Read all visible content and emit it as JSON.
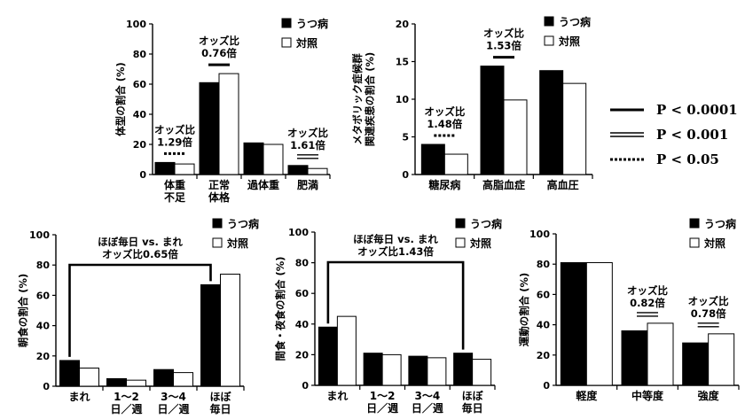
{
  "chart_data": [
    {
      "id": "c1",
      "type": "bar",
      "ylabel": "体型の割合 (%)",
      "ylim": [
        0,
        100
      ],
      "yticks": [
        0,
        20,
        40,
        60,
        80,
        100
      ],
      "categories": [
        [
          "体重",
          "不足"
        ],
        [
          "正常",
          "体格"
        ],
        [
          "過体重"
        ],
        [
          "肥満"
        ]
      ],
      "series": [
        {
          "name": "うつ病",
          "color": "#000000",
          "values": [
            8,
            61,
            21,
            6
          ]
        },
        {
          "name": "対照",
          "color": "#ffffff",
          "values": [
            7,
            67,
            20,
            4
          ]
        }
      ],
      "annotations": [
        {
          "cat": 0,
          "lines": [
            "オッズ比",
            "1.29倍"
          ],
          "sig": "dotted"
        },
        {
          "cat": 1,
          "lines": [
            "オッズ比",
            "0.76倍"
          ],
          "sig": "solid"
        },
        {
          "cat": 3,
          "lines": [
            "オッズ比",
            "1.61倍"
          ],
          "sig": "double"
        }
      ]
    },
    {
      "id": "c2",
      "type": "bar",
      "ylabel": [
        "メタボリック症候群",
        "関連疾患の割合 (%)"
      ],
      "ylim": [
        0,
        20
      ],
      "yticks": [
        0,
        5,
        10,
        15,
        20
      ],
      "categories": [
        [
          "糖尿病"
        ],
        [
          "高脂血症"
        ],
        [
          "高血圧"
        ]
      ],
      "series": [
        {
          "name": "うつ病",
          "color": "#000000",
          "values": [
            4.0,
            14.4,
            13.8
          ]
        },
        {
          "name": "対照",
          "color": "#ffffff",
          "values": [
            2.7,
            9.9,
            12.1
          ]
        }
      ],
      "annotations": [
        {
          "cat": 0,
          "lines": [
            "オッズ比",
            "1.48倍"
          ],
          "sig": "dotted"
        },
        {
          "cat": 1,
          "lines": [
            "オッズ比",
            "1.53倍"
          ],
          "sig": "solid"
        }
      ]
    },
    {
      "id": "c3",
      "type": "bar",
      "ylabel": "朝食の割合 (%)",
      "ylim": [
        0,
        100
      ],
      "yticks": [
        0,
        20,
        40,
        60,
        80,
        100
      ],
      "categories": [
        [
          "まれ"
        ],
        [
          "1～2",
          "日／週"
        ],
        [
          "3～4",
          "日／週"
        ],
        [
          "ほぼ",
          "毎日"
        ]
      ],
      "series": [
        {
          "name": "うつ病",
          "color": "#000000",
          "values": [
            17,
            5,
            11,
            67
          ]
        },
        {
          "name": "対照",
          "color": "#ffffff",
          "values": [
            12,
            4,
            9,
            74
          ]
        }
      ],
      "bracket": {
        "from": 0,
        "to": 3,
        "lines": [
          "ほぼ毎日 vs. まれ",
          "オッズ比0.65倍"
        ]
      }
    },
    {
      "id": "c4",
      "type": "bar",
      "ylabel": "間食・夜食の割合 (%)",
      "ylim": [
        0,
        100
      ],
      "yticks": [
        0,
        20,
        40,
        60,
        80,
        100
      ],
      "categories": [
        [
          "まれ"
        ],
        [
          "1～2",
          "日／週"
        ],
        [
          "3～4",
          "日／週"
        ],
        [
          "ほぼ",
          "毎日"
        ]
      ],
      "series": [
        {
          "name": "うつ病",
          "color": "#000000",
          "values": [
            38,
            21,
            19,
            21
          ]
        },
        {
          "name": "対照",
          "color": "#ffffff",
          "values": [
            45,
            20,
            18,
            17
          ]
        }
      ],
      "bracket": {
        "from": 0,
        "to": 3,
        "lines": [
          "ほぼ毎日 vs. まれ",
          "オッズ比1.43倍"
        ]
      }
    },
    {
      "id": "c5",
      "type": "bar",
      "ylabel": "運動の割合 (%)",
      "ylim": [
        0,
        100
      ],
      "yticks": [
        0,
        20,
        40,
        60,
        80,
        100
      ],
      "categories": [
        [
          "軽度"
        ],
        [
          "中等度"
        ],
        [
          "強度"
        ]
      ],
      "series": [
        {
          "name": "うつ病",
          "color": "#000000",
          "values": [
            81,
            36,
            28
          ]
        },
        {
          "name": "対照",
          "color": "#ffffff",
          "values": [
            81,
            41,
            34
          ]
        }
      ],
      "annotations": [
        {
          "cat": 1,
          "lines": [
            "オッズ比",
            "0.82倍"
          ],
          "sig": "double"
        },
        {
          "cat": 2,
          "lines": [
            "オッズ比",
            "0.78倍"
          ],
          "sig": "double"
        }
      ]
    }
  ],
  "significance_key": [
    {
      "style": "solid",
      "label": "P < 0.0001"
    },
    {
      "style": "double",
      "label": "P < 0.001"
    },
    {
      "style": "dotted",
      "label": "P < 0.05"
    }
  ]
}
